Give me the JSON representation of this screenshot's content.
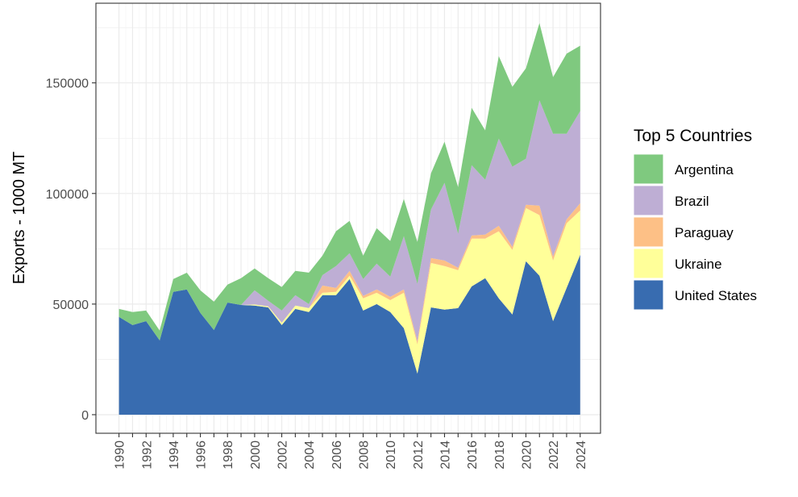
{
  "chart_data": {
    "type": "area",
    "stacked": true,
    "title": "",
    "xlabel": "",
    "ylabel": "Exports - 1000 MT",
    "ylim": [
      -8400,
      186000
    ],
    "xlim": [
      1988.3,
      2025.5
    ],
    "yticks": [
      0,
      50000,
      100000,
      150000
    ],
    "xtick_labels": [
      "1990",
      "1992",
      "1994",
      "1996",
      "1998",
      "2000",
      "2002",
      "2004",
      "2006",
      "2008",
      "2010",
      "2012",
      "2014",
      "2016",
      "2018",
      "2020",
      "2022",
      "2024"
    ],
    "grid": true,
    "legend": {
      "title": "Top 5 Countries",
      "placement": "right"
    },
    "x": [
      1990,
      1991,
      1992,
      1993,
      1994,
      1995,
      1996,
      1997,
      1998,
      1999,
      2000,
      2001,
      2002,
      2003,
      2004,
      2005,
      2006,
      2007,
      2008,
      2009,
      2010,
      2011,
      2012,
      2013,
      2014,
      2015,
      2016,
      2017,
      2018,
      2019,
      2020,
      2021,
      2022,
      2023,
      2024
    ],
    "series": [
      {
        "name": "United States",
        "color": "#386cb0",
        "values": [
          44200,
          40500,
          42300,
          33600,
          55500,
          56600,
          46000,
          38300,
          50700,
          49600,
          49300,
          48500,
          40500,
          47800,
          46400,
          54000,
          54000,
          61300,
          47100,
          50000,
          46400,
          39100,
          18600,
          48500,
          47500,
          48200,
          58000,
          61700,
          52600,
          45300,
          69400,
          62800,
          42300,
          57300,
          72300
        ]
      },
      {
        "name": "Ukraine",
        "color": "#ffff99",
        "values": [
          0,
          0,
          0,
          0,
          0,
          0,
          0,
          0,
          0,
          0,
          500,
          500,
          1100,
          1500,
          1800,
          1100,
          1500,
          1500,
          5500,
          5100,
          5400,
          16000,
          13200,
          20100,
          19700,
          17100,
          21600,
          17900,
          30300,
          29200,
          24000,
          27400,
          27400,
          29200,
          20000
        ]
      },
      {
        "name": "Paraguay",
        "color": "#fdc086",
        "values": [
          0,
          0,
          0,
          0,
          0,
          0,
          0,
          0,
          0,
          0,
          0,
          0,
          0,
          0,
          0,
          3300,
          1800,
          2200,
          1100,
          1500,
          1500,
          1500,
          1400,
          2200,
          2500,
          1100,
          1400,
          1800,
          2500,
          1400,
          1500,
          4300,
          1800,
          1800,
          3300
        ]
      },
      {
        "name": "Brazil",
        "color": "#beaed4",
        "values": [
          0,
          0,
          0,
          0,
          0,
          0,
          0,
          0,
          0,
          0,
          6400,
          2500,
          5500,
          4700,
          1800,
          4700,
          9900,
          8000,
          7600,
          11700,
          9100,
          24100,
          25900,
          21900,
          35100,
          15400,
          31800,
          24800,
          39400,
          36200,
          20800,
          47600,
          55500,
          38700,
          41600
        ]
      },
      {
        "name": "Argentina",
        "color": "#7fc97f",
        "values": [
          3600,
          5900,
          4800,
          4400,
          5800,
          7600,
          10200,
          12800,
          8100,
          12100,
          9900,
          10200,
          10600,
          11000,
          14200,
          8800,
          15700,
          14600,
          10600,
          16000,
          16100,
          16800,
          19000,
          16400,
          18600,
          21100,
          25900,
          22300,
          37300,
          36100,
          40900,
          34900,
          25600,
          36200,
          29600
        ]
      }
    ],
    "legend_order": [
      "Argentina",
      "Brazil",
      "Paraguay",
      "Ukraine",
      "United States"
    ]
  }
}
